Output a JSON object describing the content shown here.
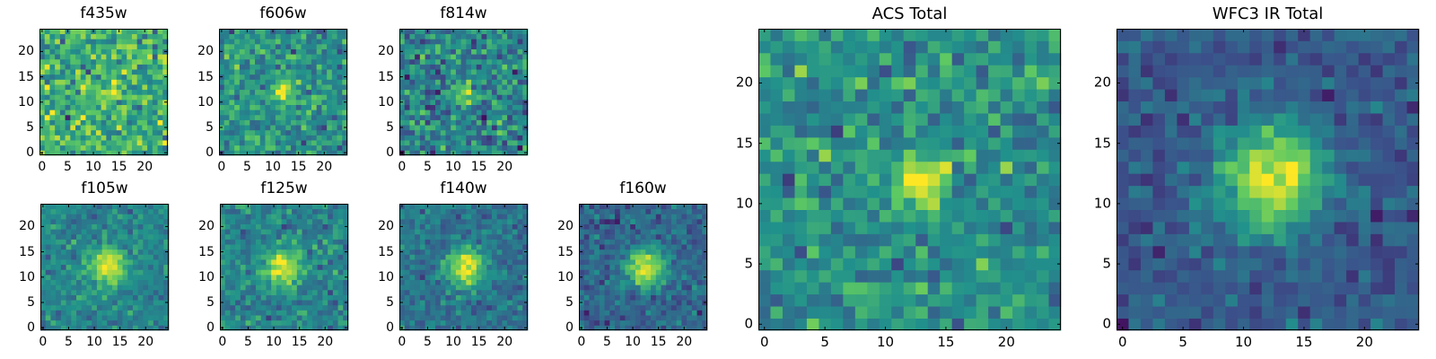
{
  "colors": {
    "cmap": [
      "#440154",
      "#3b528b",
      "#21918c",
      "#5ec962",
      "#fde725"
    ],
    "frame": "#000000"
  },
  "chart_data": {
    "type": "heatmap",
    "image_size": [
      25,
      25
    ],
    "xlim": [
      -0.5,
      24.5
    ],
    "ylim": [
      -0.5,
      24.5
    ],
    "xticks": [
      0,
      5,
      10,
      15,
      20
    ],
    "yticks": [
      0,
      5,
      10,
      15,
      20
    ],
    "colormap": "viridis",
    "panels": [
      {
        "id": "f435w",
        "title": "f435w",
        "size": "small",
        "source": {
          "x": 13,
          "y": 12,
          "amp": 0.35,
          "sigma": 1.4
        },
        "background": 0.62,
        "noise": 0.15,
        "seed": 11
      },
      {
        "id": "f606w",
        "title": "f606w",
        "size": "small",
        "source": {
          "x": 12,
          "y": 12,
          "amp": 0.5,
          "sigma": 1.5
        },
        "background": 0.5,
        "noise": 0.12,
        "seed": 23
      },
      {
        "id": "f814w",
        "title": "f814w",
        "size": "small",
        "source": {
          "x": 12.5,
          "y": 11.5,
          "amp": 0.55,
          "sigma": 1.3
        },
        "background": 0.45,
        "noise": 0.14,
        "seed": 37
      },
      {
        "id": "f105w",
        "title": "f105w",
        "size": "small",
        "source": {
          "x": 12.5,
          "y": 12,
          "amp": 0.55,
          "sigma": 2.4
        },
        "background": 0.45,
        "noise": 0.08,
        "seed": 41
      },
      {
        "id": "f125w",
        "title": "f125w",
        "size": "small",
        "source": {
          "x": 12,
          "y": 12,
          "amp": 0.55,
          "sigma": 2.4
        },
        "background": 0.45,
        "noise": 0.09,
        "seed": 53
      },
      {
        "id": "f140w",
        "title": "f140w",
        "size": "small",
        "source": {
          "x": 12.5,
          "y": 12,
          "amp": 0.6,
          "sigma": 2.5
        },
        "background": 0.38,
        "noise": 0.08,
        "seed": 67
      },
      {
        "id": "f160w",
        "title": "f160w",
        "size": "small",
        "source": {
          "x": 12.5,
          "y": 12,
          "amp": 0.65,
          "sigma": 2.6
        },
        "background": 0.33,
        "noise": 0.08,
        "seed": 71
      },
      {
        "id": "acs_total",
        "title": "ACS Total",
        "size": "large",
        "source": {
          "x": 12.8,
          "y": 12,
          "amp": 0.5,
          "sigma": 1.5
        },
        "background": 0.5,
        "noise": 0.11,
        "seed": 83
      },
      {
        "id": "wfc3_ir_total",
        "title": "WFC3 IR Total",
        "size": "large",
        "source": {
          "x": 12.3,
          "y": 12,
          "amp": 0.7,
          "sigma": 3.0
        },
        "background": 0.28,
        "noise": 0.07,
        "seed": 97
      }
    ]
  }
}
